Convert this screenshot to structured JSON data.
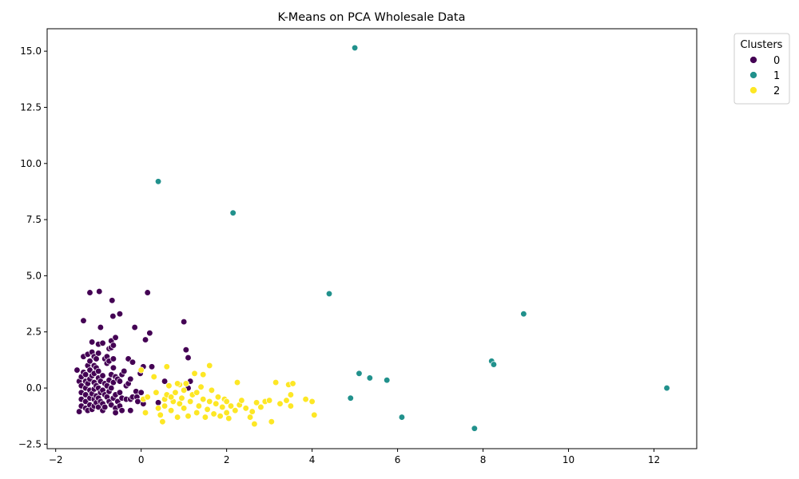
{
  "chart_data": {
    "type": "scatter",
    "title": "K-Means on PCA Wholesale Data",
    "xlabel": "",
    "ylabel": "",
    "xlim": [
      -2.2,
      13.0
    ],
    "ylim": [
      -2.7,
      16.0
    ],
    "x_ticks": [
      -2,
      0,
      2,
      4,
      6,
      8,
      10,
      12
    ],
    "y_ticks": [
      -2.5,
      0.0,
      2.5,
      5.0,
      7.5,
      10.0,
      12.5,
      15.0
    ],
    "x_tick_labels": [
      "−2",
      "0",
      "2",
      "4",
      "6",
      "8",
      "10",
      "12"
    ],
    "y_tick_labels": [
      "−2.5",
      "0.0",
      "2.5",
      "5.0",
      "7.5",
      "10.0",
      "12.5",
      "15.0"
    ],
    "grid": false,
    "legend": {
      "title": "Clusters",
      "placement": "outside-top-right",
      "entries": [
        "0",
        "1",
        "2"
      ]
    },
    "colors": {
      "0": "#440154",
      "1": "#21918c",
      "2": "#fde725"
    },
    "series": [
      {
        "name": "0",
        "points": [
          [
            -1.5,
            0.8
          ],
          [
            -1.45,
            0.3
          ],
          [
            -1.45,
            -1.05
          ],
          [
            -1.4,
            -0.8
          ],
          [
            -1.4,
            -0.5
          ],
          [
            -1.4,
            -0.2
          ],
          [
            -1.4,
            0.1
          ],
          [
            -1.4,
            0.5
          ],
          [
            -1.35,
            1.4
          ],
          [
            -1.35,
            0.7
          ],
          [
            -1.35,
            3.0
          ],
          [
            -1.3,
            -0.9
          ],
          [
            -1.3,
            -0.6
          ],
          [
            -1.3,
            -0.3
          ],
          [
            -1.3,
            0.0
          ],
          [
            -1.3,
            0.3
          ],
          [
            -1.3,
            0.6
          ],
          [
            -1.25,
            1.5
          ],
          [
            -1.25,
            1.0
          ],
          [
            -1.25,
            -1.0
          ],
          [
            -1.25,
            0.2
          ],
          [
            -1.2,
            4.25
          ],
          [
            -1.2,
            1.2
          ],
          [
            -1.2,
            0.8
          ],
          [
            -1.2,
            0.4
          ],
          [
            -1.2,
            -0.1
          ],
          [
            -1.2,
            -0.45
          ],
          [
            -1.2,
            -0.75
          ],
          [
            -1.15,
            2.05
          ],
          [
            -1.15,
            1.6
          ],
          [
            -1.15,
            0.55
          ],
          [
            -1.15,
            -0.25
          ],
          [
            -1.15,
            -0.95
          ],
          [
            -1.1,
            1.4
          ],
          [
            -1.1,
            1.0
          ],
          [
            -1.1,
            0.65
          ],
          [
            -1.1,
            0.25
          ],
          [
            -1.1,
            -0.05
          ],
          [
            -1.1,
            -0.5
          ],
          [
            -1.1,
            -0.8
          ],
          [
            -1.05,
            1.3
          ],
          [
            -1.05,
            0.9
          ],
          [
            -1.05,
            0.1
          ],
          [
            -1.05,
            -0.35
          ],
          [
            -1.05,
            -0.65
          ],
          [
            -1.0,
            1.95
          ],
          [
            -1.0,
            1.55
          ],
          [
            -1.0,
            0.75
          ],
          [
            -1.0,
            0.45
          ],
          [
            -1.0,
            0.0
          ],
          [
            -1.0,
            -0.45
          ],
          [
            -1.0,
            -0.85
          ],
          [
            -0.98,
            4.3
          ],
          [
            -0.95,
            2.7
          ],
          [
            -0.95,
            0.3
          ],
          [
            -0.95,
            -0.2
          ],
          [
            -0.95,
            -0.6
          ],
          [
            -0.9,
            2.0
          ],
          [
            -0.9,
            0.55
          ],
          [
            -0.9,
            -0.1
          ],
          [
            -0.9,
            -0.7
          ],
          [
            -0.9,
            -1.0
          ],
          [
            -0.85,
            1.3
          ],
          [
            -0.85,
            0.2
          ],
          [
            -0.85,
            -0.3
          ],
          [
            -0.85,
            -0.85
          ],
          [
            -0.8,
            1.4
          ],
          [
            -0.8,
            1.1
          ],
          [
            -0.8,
            0.1
          ],
          [
            -0.8,
            -0.4
          ],
          [
            -0.75,
            1.75
          ],
          [
            -0.75,
            1.2
          ],
          [
            -0.75,
            0.35
          ],
          [
            -0.75,
            -0.15
          ],
          [
            -0.75,
            -0.6
          ],
          [
            -0.7,
            2.1
          ],
          [
            -0.7,
            1.8
          ],
          [
            -0.7,
            0.6
          ],
          [
            -0.7,
            0.0
          ],
          [
            -0.7,
            -0.75
          ],
          [
            -0.68,
            3.9
          ],
          [
            -0.66,
            3.2
          ],
          [
            -0.65,
            1.9
          ],
          [
            -0.65,
            1.3
          ],
          [
            -0.65,
            0.9
          ],
          [
            -0.65,
            0.25
          ],
          [
            -0.65,
            -0.45
          ],
          [
            -0.6,
            2.25
          ],
          [
            -0.6,
            0.5
          ],
          [
            -0.6,
            -0.3
          ],
          [
            -0.6,
            -0.9
          ],
          [
            -0.6,
            -1.1
          ],
          [
            -0.55,
            0.4
          ],
          [
            -0.55,
            -0.6
          ],
          [
            -0.5,
            3.3
          ],
          [
            -0.5,
            0.3
          ],
          [
            -0.5,
            -0.2
          ],
          [
            -0.5,
            -0.8
          ],
          [
            -0.45,
            0.6
          ],
          [
            -0.45,
            -0.45
          ],
          [
            -0.45,
            -1.0
          ],
          [
            -0.4,
            0.75
          ],
          [
            -0.35,
            0.1
          ],
          [
            -0.35,
            -0.5
          ],
          [
            -0.3,
            1.3
          ],
          [
            -0.3,
            0.2
          ],
          [
            -0.25,
            0.4
          ],
          [
            -0.25,
            -0.5
          ],
          [
            -0.25,
            -1.0
          ],
          [
            -0.2,
            1.15
          ],
          [
            -0.2,
            -0.4
          ],
          [
            -0.15,
            2.7
          ],
          [
            -0.12,
            -0.15
          ],
          [
            -0.1,
            -0.4
          ],
          [
            -0.08,
            -0.6
          ],
          [
            -0.02,
            0.65
          ],
          [
            0.0,
            -0.2
          ],
          [
            0.05,
            0.95
          ],
          [
            0.05,
            -0.7
          ],
          [
            0.1,
            2.15
          ],
          [
            0.15,
            4.25
          ],
          [
            0.2,
            2.45
          ],
          [
            0.25,
            0.95
          ],
          [
            0.4,
            -0.65
          ],
          [
            0.55,
            0.3
          ],
          [
            1.0,
            2.95
          ],
          [
            1.05,
            1.7
          ],
          [
            1.1,
            1.35
          ],
          [
            1.1,
            0.0
          ],
          [
            1.15,
            0.3
          ]
        ]
      },
      {
        "name": "1",
        "points": [
          [
            5.0,
            15.15
          ],
          [
            0.4,
            9.2
          ],
          [
            2.15,
            7.8
          ],
          [
            4.4,
            4.2
          ],
          [
            8.95,
            3.3
          ],
          [
            8.2,
            1.2
          ],
          [
            8.25,
            1.05
          ],
          [
            5.1,
            0.65
          ],
          [
            5.35,
            0.45
          ],
          [
            5.75,
            0.35
          ],
          [
            12.3,
            0.0
          ],
          [
            4.9,
            -0.45
          ],
          [
            6.1,
            -1.3
          ],
          [
            7.8,
            -1.8
          ]
        ]
      },
      {
        "name": "2",
        "points": [
          [
            0.0,
            0.8
          ],
          [
            0.05,
            -0.5
          ],
          [
            0.1,
            -1.1
          ],
          [
            0.15,
            -0.4
          ],
          [
            0.3,
            0.5
          ],
          [
            0.35,
            -0.2
          ],
          [
            0.4,
            -0.9
          ],
          [
            0.45,
            -1.2
          ],
          [
            0.5,
            -1.5
          ],
          [
            0.55,
            -0.5
          ],
          [
            0.55,
            -0.8
          ],
          [
            0.6,
            -0.3
          ],
          [
            0.6,
            0.95
          ],
          [
            0.65,
            0.1
          ],
          [
            0.7,
            -1.0
          ],
          [
            0.75,
            -0.6
          ],
          [
            0.8,
            -0.2
          ],
          [
            0.85,
            -1.3
          ],
          [
            0.9,
            0.15
          ],
          [
            0.9,
            -0.7
          ],
          [
            0.95,
            -0.45
          ],
          [
            1.0,
            -0.9
          ],
          [
            1.05,
            0.2
          ],
          [
            1.1,
            -1.25
          ],
          [
            1.15,
            -0.6
          ],
          [
            1.2,
            -0.3
          ],
          [
            1.25,
            0.65
          ],
          [
            1.3,
            -1.1
          ],
          [
            1.35,
            -0.8
          ],
          [
            1.4,
            0.05
          ],
          [
            1.45,
            -0.5
          ],
          [
            1.5,
            -1.3
          ],
          [
            1.55,
            -0.95
          ],
          [
            1.6,
            1.0
          ],
          [
            1.65,
            -0.1
          ],
          [
            1.7,
            -1.15
          ],
          [
            1.75,
            -0.7
          ],
          [
            1.8,
            -0.4
          ],
          [
            1.85,
            -1.25
          ],
          [
            1.9,
            -0.85
          ],
          [
            1.95,
            -0.5
          ],
          [
            2.0,
            -0.6
          ],
          [
            2.05,
            -1.35
          ],
          [
            2.1,
            -0.8
          ],
          [
            2.2,
            -1.0
          ],
          [
            2.25,
            0.25
          ],
          [
            2.3,
            -0.75
          ],
          [
            2.35,
            -0.55
          ],
          [
            2.45,
            -0.9
          ],
          [
            2.55,
            -1.3
          ],
          [
            2.6,
            -1.05
          ],
          [
            2.65,
            -1.6
          ],
          [
            2.7,
            -0.65
          ],
          [
            2.8,
            -0.85
          ],
          [
            2.9,
            -0.6
          ],
          [
            3.0,
            -0.55
          ],
          [
            3.05,
            -1.5
          ],
          [
            3.15,
            0.25
          ],
          [
            3.25,
            -0.7
          ],
          [
            3.4,
            -0.55
          ],
          [
            3.45,
            0.15
          ],
          [
            3.5,
            -0.8
          ],
          [
            3.5,
            -0.3
          ],
          [
            3.55,
            0.2
          ],
          [
            3.85,
            -0.5
          ],
          [
            4.0,
            -0.6
          ],
          [
            4.05,
            -1.2
          ],
          [
            1.3,
            -0.2
          ],
          [
            0.7,
            -0.4
          ],
          [
            1.0,
            -0.1
          ],
          [
            1.6,
            -0.6
          ],
          [
            0.85,
            0.2
          ],
          [
            1.45,
            0.6
          ],
          [
            2.0,
            -1.1
          ]
        ]
      }
    ]
  }
}
